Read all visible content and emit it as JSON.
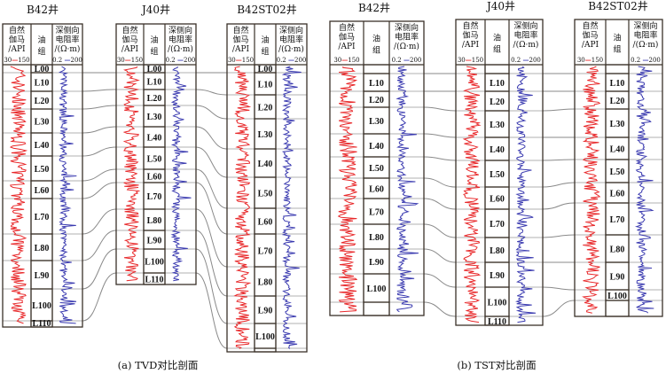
{
  "header_labels": {
    "gr": [
      "自然",
      "伽马",
      "/API"
    ],
    "gr_scale": {
      "min": "30",
      "max": "150",
      "color": "#e8282a"
    },
    "zone": [
      "油",
      "组"
    ],
    "res": [
      "深侧向",
      "电阻率",
      "/(Ω·m)"
    ],
    "res_scale": {
      "min": "0.2",
      "max": "200",
      "color": "#3b3bb0"
    }
  },
  "colors": {
    "gr_curve": "#e8282a",
    "res_curve": "#3b3bb0",
    "correlation_line": "#8a8a8a",
    "frame": "#3a3128"
  },
  "panels": [
    {
      "caption": "(a) TVD对比剖面",
      "wells": [
        {
          "name": "B42井",
          "zones": [
            "L00",
            "L10",
            "L20",
            "L30",
            "L40",
            "L50",
            "L60",
            "L70",
            "L80",
            "L90",
            "L100",
            "L110"
          ]
        },
        {
          "name": "J40井",
          "zones": [
            "L00",
            "L10",
            "L20",
            "L30",
            "L40",
            "L50",
            "L60",
            "L70",
            "L80",
            "L90",
            "L100",
            "L110"
          ]
        },
        {
          "name": "B42ST02井",
          "zones": [
            "L00",
            "L10",
            "L20",
            "L30",
            "L40",
            "L50",
            "L60",
            "L70",
            "L80",
            "L90",
            "L100",
            ""
          ]
        }
      ]
    },
    {
      "caption": "(b) TST对比剖面",
      "wells": [
        {
          "name": "B42井",
          "zones": [
            "",
            "L10",
            "L20",
            "L30",
            "L40",
            "L50",
            "L60",
            "L70",
            "L80",
            "L90",
            "L100",
            ""
          ]
        },
        {
          "name": "J40井",
          "zones": [
            "",
            "L10",
            "L20",
            "L30",
            "L40",
            "L50",
            "L60",
            "L70",
            "L80",
            "L90",
            "L100",
            "L110"
          ]
        },
        {
          "name": "B42ST02井",
          "zones": [
            "",
            "L10",
            "L20",
            "L30",
            "L40",
            "L50",
            "L60",
            "L70",
            "L80",
            "L90",
            "L100",
            ""
          ]
        }
      ]
    }
  ]
}
